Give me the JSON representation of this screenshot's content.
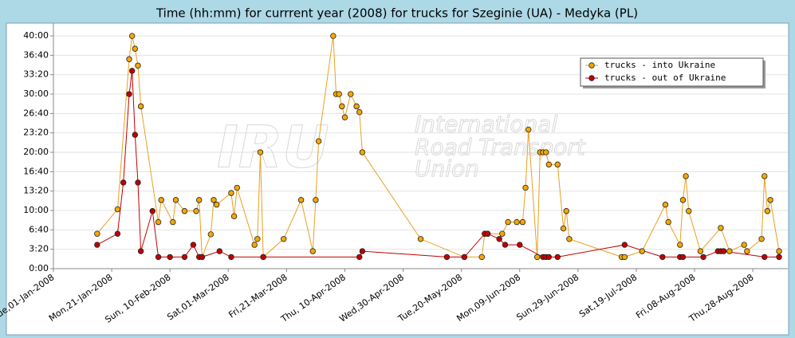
{
  "chart_data": {
    "type": "line",
    "title": "Time (hh:mm) for currrent year (2008) for trucks for Szeginie (UA) - Medyka (PL)",
    "watermark": {
      "logo": "IRU",
      "lines": [
        "International",
        "Road Transport",
        "Union"
      ]
    },
    "xlim": [
      "2008-01-01",
      "2008-09-09"
    ],
    "xticks": [
      {
        "value": "2008-01-01",
        "label": "Tue,01-Jan-2008"
      },
      {
        "value": "2008-01-21",
        "label": "Mon,21-Jan-2008"
      },
      {
        "value": "2008-02-10",
        "label": "Sun, 10-Feb-2008"
      },
      {
        "value": "2008-03-01",
        "label": "Sat,01-Mar-2008"
      },
      {
        "value": "2008-03-21",
        "label": "Fri,21-Mar-2008"
      },
      {
        "value": "2008-04-10",
        "label": "Thu, 10-Apr-2008"
      },
      {
        "value": "2008-04-30",
        "label": "Wed,30-Apr-2008"
      },
      {
        "value": "2008-05-20",
        "label": "Tue,20-May-2008"
      },
      {
        "value": "2008-06-09",
        "label": "Mon,09-Jun-2008"
      },
      {
        "value": "2008-06-29",
        "label": "Sun,29-Jun-2008"
      },
      {
        "value": "2008-07-19",
        "label": "Sat,19-Jul-2008"
      },
      {
        "value": "2008-08-08",
        "label": "Fri,08-Aug-2008"
      },
      {
        "value": "2008-08-28",
        "label": "Thu,28-Aug-2008"
      }
    ],
    "ylim": [
      0,
      42.2
    ],
    "yticks": [
      {
        "value": 0,
        "label": "0:00"
      },
      {
        "value": 3.333,
        "label": "3:20"
      },
      {
        "value": 6.667,
        "label": "6:40"
      },
      {
        "value": 10,
        "label": "10:00"
      },
      {
        "value": 13.333,
        "label": "13:20"
      },
      {
        "value": 16.667,
        "label": "16:40"
      },
      {
        "value": 20,
        "label": "20:00"
      },
      {
        "value": 23.333,
        "label": "23:20"
      },
      {
        "value": 26.667,
        "label": "26:40"
      },
      {
        "value": 30,
        "label": "30:00"
      },
      {
        "value": 33.333,
        "label": "33:20"
      },
      {
        "value": 36.667,
        "label": "36:40"
      },
      {
        "value": 40,
        "label": "40:00"
      }
    ],
    "grid": true,
    "legend": "top-right",
    "series": [
      {
        "name": "trucks - into Ukraine",
        "color": "#f5a800",
        "line_color": "#e8a020",
        "x": [
          "2008-01-16",
          "2008-01-23",
          "2008-01-27",
          "2008-01-28",
          "2008-01-29",
          "2008-01-30",
          "2008-01-31",
          "2008-02-06",
          "2008-02-07",
          "2008-02-11",
          "2008-02-12",
          "2008-02-15",
          "2008-02-19",
          "2008-02-20",
          "2008-02-21",
          "2008-02-24",
          "2008-02-25",
          "2008-02-26",
          "2008-03-02",
          "2008-03-03",
          "2008-03-04",
          "2008-03-10",
          "2008-03-11",
          "2008-03-12",
          "2008-03-13",
          "2008-03-20",
          "2008-03-26",
          "2008-03-30",
          "2008-03-31",
          "2008-04-01",
          "2008-04-06",
          "2008-04-07",
          "2008-04-08",
          "2008-04-09",
          "2008-04-10",
          "2008-04-12",
          "2008-04-14",
          "2008-04-15",
          "2008-04-16",
          "2008-05-06",
          "2008-05-21",
          "2008-05-27",
          "2008-05-28",
          "2008-05-29",
          "2008-06-03",
          "2008-06-05",
          "2008-06-08",
          "2008-06-10",
          "2008-06-11",
          "2008-06-12",
          "2008-06-15",
          "2008-06-16",
          "2008-06-17",
          "2008-06-18",
          "2008-06-19",
          "2008-06-22",
          "2008-06-24",
          "2008-06-25",
          "2008-06-26",
          "2008-07-14",
          "2008-07-15",
          "2008-07-21",
          "2008-07-29",
          "2008-07-30",
          "2008-08-03",
          "2008-08-04",
          "2008-08-05",
          "2008-08-06",
          "2008-08-10",
          "2008-08-17",
          "2008-08-20",
          "2008-08-25",
          "2008-08-26",
          "2008-08-31",
          "2008-09-01",
          "2008-09-02",
          "2008-09-03",
          "2008-09-06"
        ],
        "values": [
          6,
          10.2,
          36,
          40,
          37.8,
          34.9,
          27.9,
          8,
          11.8,
          8,
          11.8,
          9.9,
          9.9,
          11.8,
          2,
          5.9,
          11.8,
          11,
          13,
          9,
          13.9,
          4.1,
          5.1,
          20,
          2,
          5.1,
          11.8,
          3,
          11.8,
          21.9,
          40,
          30,
          30,
          27.9,
          26,
          30,
          27.9,
          26.9,
          20,
          5.1,
          2,
          2,
          6,
          6,
          6,
          8,
          8,
          8,
          13.9,
          23.9,
          2,
          20,
          20,
          20,
          17.9,
          17.9,
          6.9,
          9.9,
          5.1,
          2,
          2,
          3,
          11,
          8,
          4.1,
          11.8,
          15.9,
          9.9,
          3,
          7,
          3,
          4.1,
          3,
          5.1,
          15.9,
          9.9,
          11.8,
          3
        ]
      },
      {
        "name": "trucks - out of Ukraine",
        "color": "#c00000",
        "line_color": "#c00000",
        "x": [
          "2008-01-16",
          "2008-01-23",
          "2008-01-25",
          "2008-01-27",
          "2008-01-28",
          "2008-01-29",
          "2008-01-30",
          "2008-01-31",
          "2008-02-04",
          "2008-02-06",
          "2008-02-10",
          "2008-02-15",
          "2008-02-18",
          "2008-02-20",
          "2008-02-21",
          "2008-02-27",
          "2008-03-02",
          "2008-03-13",
          "2008-04-15",
          "2008-04-16",
          "2008-05-15",
          "2008-05-21",
          "2008-05-28",
          "2008-05-29",
          "2008-06-02",
          "2008-06-04",
          "2008-06-09",
          "2008-06-17",
          "2008-06-18",
          "2008-06-19",
          "2008-06-22",
          "2008-07-15",
          "2008-07-28",
          "2008-08-03",
          "2008-08-04",
          "2008-08-11",
          "2008-08-16",
          "2008-08-17",
          "2008-08-18",
          "2008-09-01",
          "2008-09-06"
        ],
        "values": [
          4.1,
          6,
          14.8,
          30,
          34,
          23,
          14.8,
          3,
          9.9,
          2,
          2,
          2,
          4.1,
          2,
          2,
          3,
          2,
          2,
          2,
          3,
          2,
          2,
          6,
          6,
          5.1,
          4.1,
          4.1,
          2,
          2,
          2,
          2,
          4.1,
          2,
          2,
          2,
          2,
          3,
          3,
          3,
          2,
          2
        ]
      }
    ]
  }
}
